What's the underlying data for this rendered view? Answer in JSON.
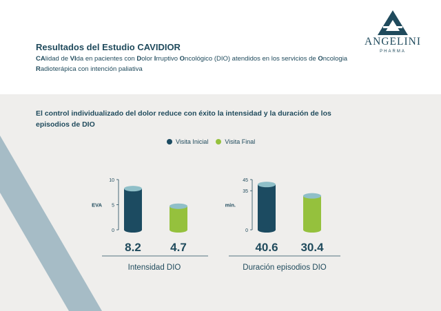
{
  "header": {
    "title": "Resultados del Estudio CAVIDIOR",
    "subtitle_runs": [
      {
        "b": true,
        "t": "CA"
      },
      {
        "b": false,
        "t": "lidad de "
      },
      {
        "b": true,
        "t": "VI"
      },
      {
        "b": false,
        "t": "da en pacientes con "
      },
      {
        "b": true,
        "t": "D"
      },
      {
        "b": false,
        "t": "olor "
      },
      {
        "b": true,
        "t": "I"
      },
      {
        "b": false,
        "t": "rruptivo "
      },
      {
        "b": true,
        "t": "O"
      },
      {
        "b": false,
        "t": "ncológico (DIO) atendidos en los servicios de "
      },
      {
        "b": true,
        "t": "O"
      },
      {
        "b": false,
        "t": "ncologia "
      },
      {
        "b": true,
        "t": "R"
      },
      {
        "b": false,
        "t": "adioterápica con intención paliativa"
      }
    ]
  },
  "logo": {
    "name": "ANGELINI",
    "sub": "PHARMA"
  },
  "headline": "El control individualizado del dolor reduce con éxito la intensidad y la duración de los episodios de DIO",
  "legend": [
    {
      "label": "Visita Inicial",
      "color": "#1c4b61"
    },
    {
      "label": "Visita Final",
      "color": "#95c13d"
    }
  ],
  "colors": {
    "initial": "#1c4b61",
    "final": "#95c13d",
    "cap": "#8fbfc8",
    "text": "#1f4a5c"
  },
  "chart_data": [
    {
      "type": "bar",
      "title": "Intensidad DIO",
      "ylabel": "EVA",
      "ylim": [
        0,
        10
      ],
      "yticks": [
        "0",
        "5",
        "10"
      ],
      "series": [
        {
          "name": "Visita Inicial",
          "value": 8.2,
          "label": "8.2"
        },
        {
          "name": "Visita Final",
          "value": 4.7,
          "label": "4.7"
        }
      ]
    },
    {
      "type": "bar",
      "title": "Duración episodios DIO",
      "ylabel": "min.",
      "ylim": [
        0,
        45
      ],
      "yticks": [
        "0",
        "35",
        "45"
      ],
      "series": [
        {
          "name": "Visita Inicial",
          "value": 40.6,
          "label": "40.6"
        },
        {
          "name": "Visita Final",
          "value": 30.4,
          "label": "30.4"
        }
      ]
    }
  ]
}
